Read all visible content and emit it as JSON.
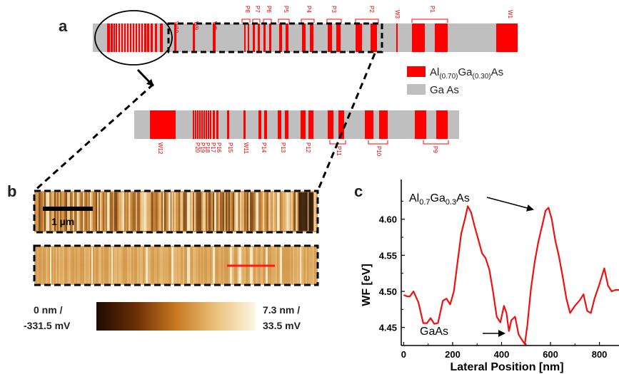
{
  "panels": {
    "a": "a",
    "b": "b",
    "c": "c"
  },
  "structure_top": {
    "labels": [
      "W10",
      "W9",
      "W8",
      "P8",
      "P7",
      "P6",
      "P5",
      "P4",
      "P3",
      "P2",
      "W3",
      "P1",
      "W1"
    ]
  },
  "structure_bottom": {
    "labels": [
      "W12",
      "P20",
      "P19",
      "P18",
      "P17",
      "P16",
      "P15",
      "W11",
      "P14",
      "P13",
      "P12",
      "P11",
      "P10",
      "P9"
    ]
  },
  "legend": {
    "algaas": {
      "base": "Al",
      "sub1": "(0.70)",
      "mid": "Ga",
      "sub2": "(0.30)",
      "end": "As",
      "color": "#ff0000"
    },
    "gaas": {
      "text": "Ga As",
      "color": "#bfbfbf"
    }
  },
  "scalebar": {
    "label": "1 µm"
  },
  "colorbar": {
    "min_line1": "0 nm /",
    "min_line2": "-331.5 mV",
    "max_line1": "7.3 nm /",
    "max_line2": "33.5 mV"
  },
  "chart_data": {
    "type": "line",
    "xlabel": "Lateral Position [nm]",
    "ylabel": "WF [eV]",
    "xlim": [
      -10,
      880
    ],
    "ylim": [
      4.425,
      4.655
    ],
    "xticks": [
      0,
      200,
      400,
      600,
      800
    ],
    "yticks": [
      4.45,
      4.5,
      4.55,
      4.6
    ],
    "ytick_labels": [
      "4.45",
      "4.50",
      "4.55",
      "4.60"
    ],
    "series": [
      {
        "color": "#ee1111",
        "x": [
          0,
          15,
          25,
          40,
          60,
          80,
          95,
          110,
          125,
          140,
          160,
          175,
          190,
          205,
          220,
          235,
          250,
          262,
          275,
          290,
          305,
          320,
          335,
          350,
          365,
          380,
          395,
          410,
          420,
          430,
          440,
          455,
          470,
          485,
          495,
          505,
          520,
          535,
          550,
          565,
          580,
          592,
          605,
          620,
          635,
          650,
          665,
          680,
          700,
          720,
          735,
          750,
          765,
          780,
          800,
          820,
          835,
          850,
          865,
          880
        ],
        "y": [
          4.495,
          4.493,
          4.493,
          4.5,
          4.485,
          4.456,
          4.456,
          4.463,
          4.455,
          4.456,
          4.487,
          4.49,
          4.482,
          4.5,
          4.54,
          4.58,
          4.6,
          4.618,
          4.61,
          4.59,
          4.572,
          4.553,
          4.546,
          4.53,
          4.5,
          4.465,
          4.457,
          4.48,
          4.47,
          4.445,
          4.46,
          4.465,
          4.44,
          4.432,
          4.427,
          4.452,
          4.503,
          4.54,
          4.568,
          4.59,
          4.612,
          4.616,
          4.6,
          4.57,
          4.548,
          4.52,
          4.49,
          4.47,
          4.48,
          4.488,
          4.496,
          4.473,
          4.47,
          4.49,
          4.51,
          4.532,
          4.508,
          4.5,
          4.502,
          4.502
        ]
      }
    ],
    "annotations": {
      "top": {
        "base": "Al",
        "sub1": "0.7",
        "mid": "Ga",
        "sub2": "0.3",
        "end": "As"
      },
      "bottom": "GaAs"
    }
  }
}
